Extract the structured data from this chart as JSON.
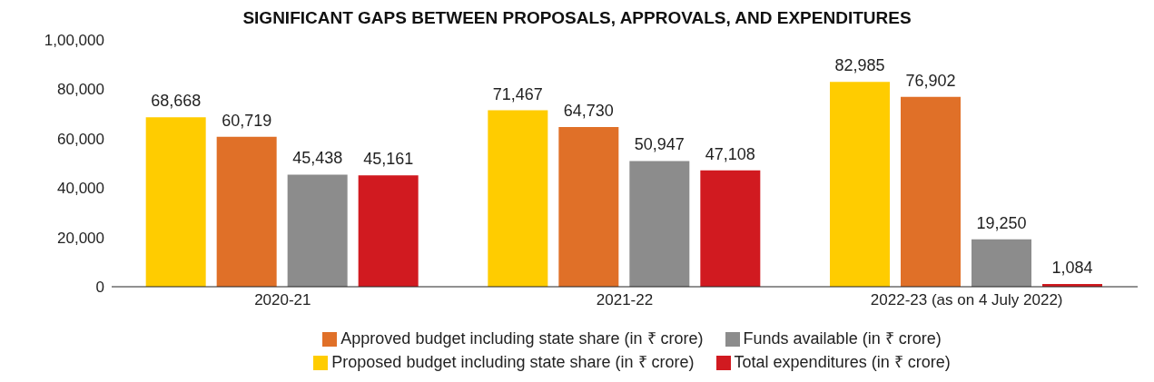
{
  "chart_data": {
    "type": "bar",
    "title": "SIGNIFICANT GAPS BETWEEN PROPOSALS, APPROVALS, AND EXPENDITURES",
    "categories": [
      "2020-21",
      "2021-22",
      "2022-23 (as on 4 July 2022)"
    ],
    "series": [
      {
        "name": "Proposed budget including state share (in ₹ crore)",
        "color": "#ffcc00",
        "values": [
          68668,
          71467,
          82985
        ],
        "value_labels": [
          "68,668",
          "71,467",
          "82,985"
        ]
      },
      {
        "name": "Approved budget including state share (in ₹ crore)",
        "color": "#e07028",
        "values": [
          60719,
          64730,
          76902
        ],
        "value_labels": [
          "60,719",
          "64,730",
          "76,902"
        ]
      },
      {
        "name": "Funds available (in ₹ crore)",
        "color": "#8c8c8c",
        "values": [
          45438,
          50947,
          19250
        ],
        "value_labels": [
          "45,438",
          "50,947",
          "19,250"
        ]
      },
      {
        "name": "Total expenditures (in ₹ crore)",
        "color": "#d11a20",
        "values": [
          45161,
          47108,
          1084
        ],
        "value_labels": [
          "45,161",
          "47,108",
          "1,084"
        ]
      }
    ],
    "ylim": [
      0,
      100000
    ],
    "yticks": [
      {
        "value": 0,
        "label": "0"
      },
      {
        "value": 20000,
        "label": "20,000"
      },
      {
        "value": 40000,
        "label": "40,000"
      },
      {
        "value": 60000,
        "label": "60,000"
      },
      {
        "value": 80000,
        "label": "80,000"
      },
      {
        "value": 100000,
        "label": "1,00,000"
      }
    ],
    "grid": false,
    "legend": "bottom"
  }
}
